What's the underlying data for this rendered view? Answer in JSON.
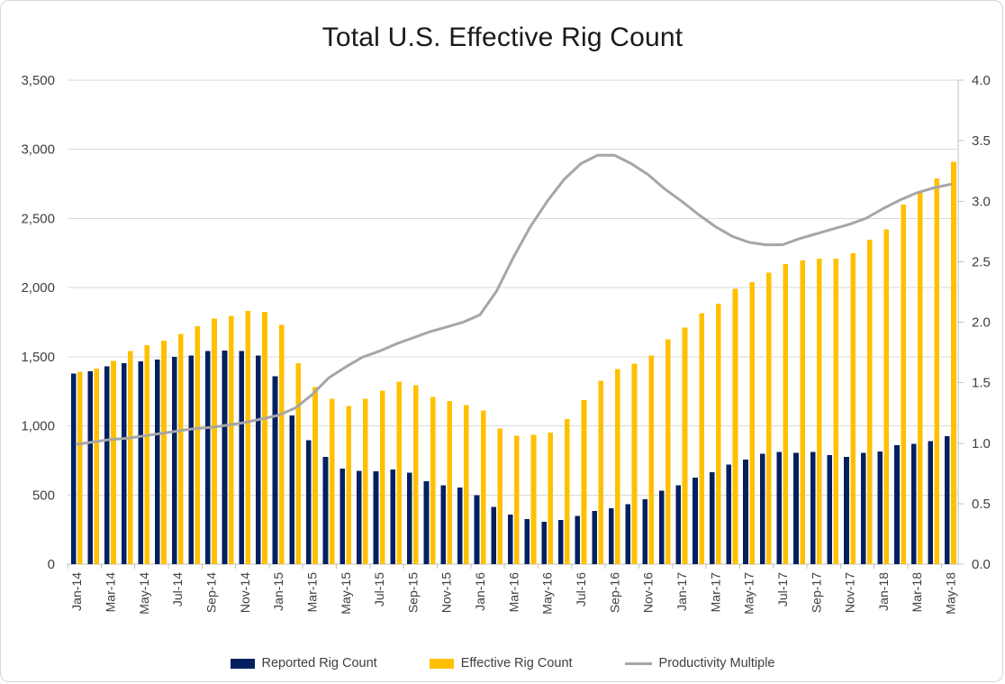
{
  "chart_data": {
    "type": "bar+line",
    "title": "Total U.S. Effective Rig Count",
    "categories": [
      "Jan-14",
      "Feb-14",
      "Mar-14",
      "Apr-14",
      "May-14",
      "Jun-14",
      "Jul-14",
      "Aug-14",
      "Sep-14",
      "Oct-14",
      "Nov-14",
      "Dec-14",
      "Jan-15",
      "Feb-15",
      "Mar-15",
      "Apr-15",
      "May-15",
      "Jun-15",
      "Jul-15",
      "Aug-15",
      "Sep-15",
      "Oct-15",
      "Nov-15",
      "Dec-15",
      "Jan-16",
      "Feb-16",
      "Mar-16",
      "Apr-16",
      "May-16",
      "Jun-16",
      "Jul-16",
      "Aug-16",
      "Sep-16",
      "Oct-16",
      "Nov-16",
      "Dec-16",
      "Jan-17",
      "Feb-17",
      "Mar-17",
      "Apr-17",
      "May-17",
      "Jun-17",
      "Jul-17",
      "Aug-17",
      "Sep-17",
      "Oct-17",
      "Nov-17",
      "Dec-17",
      "Jan-18",
      "Feb-18",
      "Mar-18",
      "Apr-18",
      "May-18"
    ],
    "x_tick_labels": [
      "Jan-14",
      "Mar-14",
      "May-14",
      "Jul-14",
      "Sep-14",
      "Nov-14",
      "Jan-15",
      "Mar-15",
      "May-15",
      "Jul-15",
      "Sep-15",
      "Nov-15",
      "Jan-16",
      "Mar-16",
      "May-16",
      "Jul-16",
      "Sep-16",
      "Nov-16",
      "Jan-17",
      "Mar-17",
      "May-17",
      "Jul-17",
      "Sep-17",
      "Nov-17",
      "Jan-18",
      "Mar-18",
      "May-18"
    ],
    "series": [
      {
        "name": "Reported Rig Count",
        "type": "bar",
        "axis": "left",
        "color": "#002060",
        "values": [
          1380,
          1395,
          1430,
          1455,
          1465,
          1480,
          1500,
          1510,
          1540,
          1545,
          1540,
          1510,
          1360,
          1075,
          895,
          775,
          690,
          675,
          670,
          685,
          660,
          600,
          570,
          555,
          500,
          415,
          360,
          325,
          305,
          320,
          350,
          385,
          405,
          435,
          470,
          530,
          570,
          625,
          665,
          720,
          755,
          800,
          810,
          805,
          810,
          790,
          775,
          805,
          815,
          860,
          870,
          890,
          925
        ]
      },
      {
        "name": "Effective Rig Count",
        "type": "bar",
        "axis": "left",
        "color": "#FFC000",
        "values": [
          1390,
          1415,
          1470,
          1540,
          1585,
          1615,
          1665,
          1720,
          1775,
          1795,
          1830,
          1825,
          1730,
          1455,
          1280,
          1195,
          1145,
          1195,
          1255,
          1320,
          1295,
          1210,
          1180,
          1150,
          1110,
          980,
          930,
          935,
          950,
          1050,
          1185,
          1325,
          1410,
          1450,
          1510,
          1625,
          1710,
          1815,
          1885,
          1990,
          2040,
          2110,
          2170,
          2195,
          2210,
          2210,
          2250,
          2345,
          2420,
          2600,
          2695,
          2790,
          2910
        ]
      },
      {
        "name": "Productivity Multiple",
        "type": "line",
        "axis": "right",
        "color": "#A6A6A6",
        "values": [
          0.99,
          1.01,
          1.03,
          1.04,
          1.06,
          1.08,
          1.1,
          1.12,
          1.13,
          1.15,
          1.17,
          1.2,
          1.23,
          1.29,
          1.4,
          1.54,
          1.63,
          1.71,
          1.76,
          1.82,
          1.87,
          1.92,
          1.96,
          2.0,
          2.06,
          2.26,
          2.54,
          2.79,
          3.0,
          3.18,
          3.31,
          3.38,
          3.38,
          3.31,
          3.22,
          3.1,
          3.0,
          2.89,
          2.79,
          2.71,
          2.66,
          2.64,
          2.64,
          2.69,
          2.73,
          2.77,
          2.81,
          2.86,
          2.94,
          3.01,
          3.07,
          3.11,
          3.14
        ]
      }
    ],
    "left_axis": {
      "min": 0,
      "max": 3500,
      "step": 500,
      "tick_labels": [
        "0",
        "500",
        "1,000",
        "1,500",
        "2,000",
        "2,500",
        "3,000",
        "3,500"
      ]
    },
    "right_axis": {
      "min": 0,
      "max": 4,
      "step": 0.5,
      "tick_labels": [
        "0.0",
        "0.5",
        "1.0",
        "1.5",
        "2.0",
        "2.5",
        "3.0",
        "3.5",
        "4.0"
      ]
    },
    "grid": true,
    "legend_position": "bottom",
    "colors": {
      "background": "#FFFFFF",
      "border": "#D7D7D7",
      "gridline": "#D9D9D9",
      "axis_line": "#BFBFBF",
      "axis_text": "#404040",
      "title_text": "#1A1A1A"
    }
  }
}
